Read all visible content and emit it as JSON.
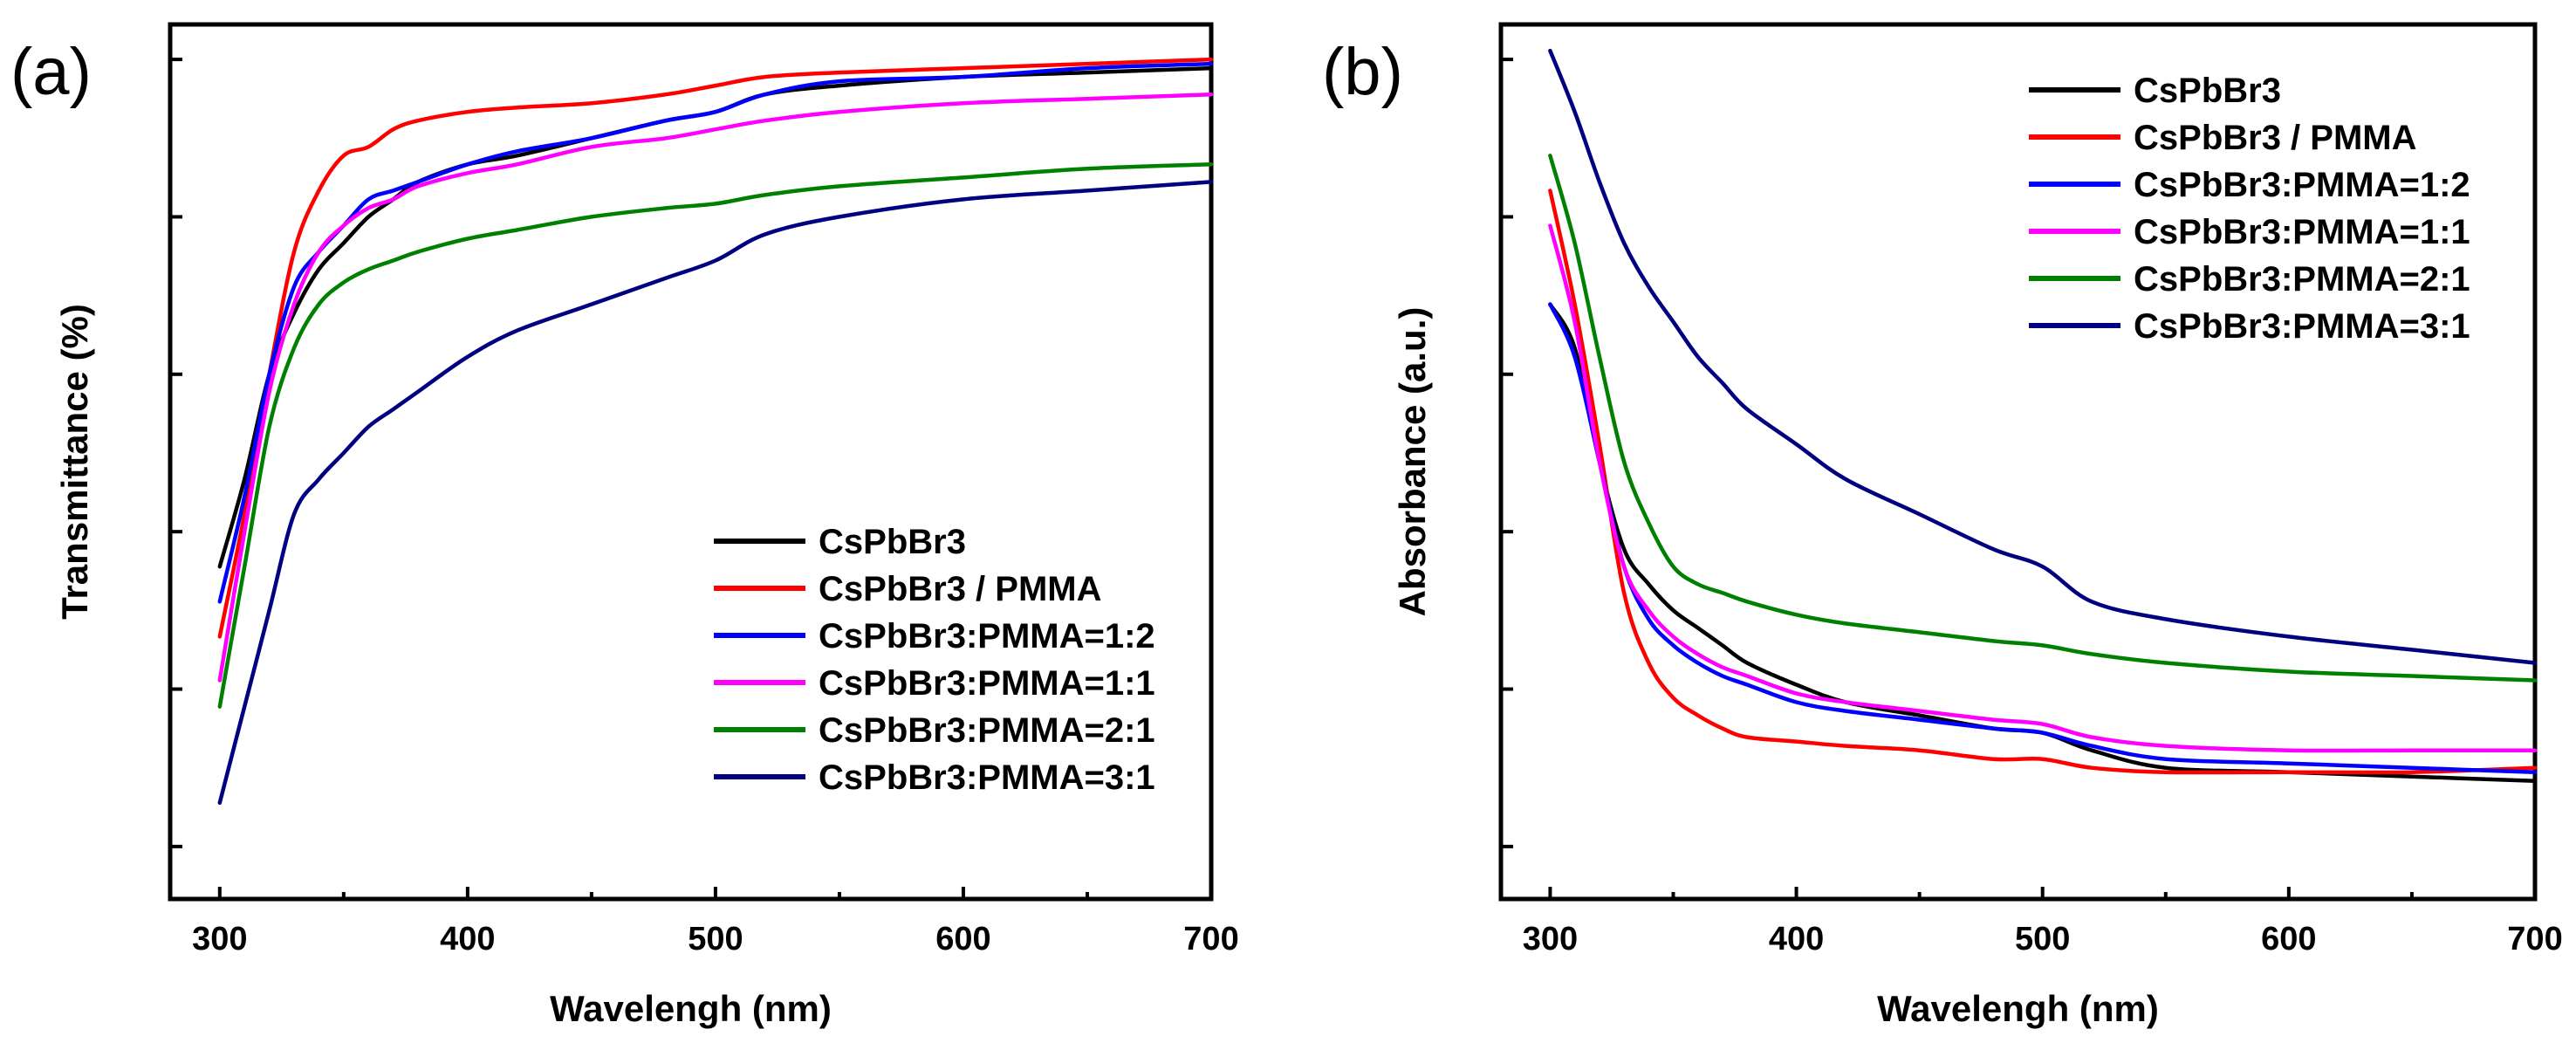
{
  "chart_data": [
    {
      "type": "line",
      "panel": "(a)",
      "title": "",
      "xlabel": "Wavelengh (nm)",
      "ylabel": "Transmittance (%)",
      "xlim": [
        280,
        700
      ],
      "ylim": [
        0,
        100
      ],
      "xticks": [
        300,
        400,
        500,
        600,
        700
      ],
      "x": [
        300,
        310,
        320,
        330,
        340,
        350,
        360,
        370,
        380,
        400,
        420,
        450,
        480,
        500,
        520,
        550,
        600,
        650,
        700
      ],
      "series": [
        {
          "name": "CsPbBr3",
          "color": "#000000",
          "values": [
            38,
            48,
            60,
            67,
            72,
            75,
            78,
            80,
            82,
            84,
            85,
            87,
            89,
            90,
            92,
            93,
            94,
            94.5,
            95
          ]
        },
        {
          "name": "CsPbBr3 / PMMA",
          "color": "#ff0000",
          "values": [
            30,
            44,
            60,
            74,
            81,
            85,
            86,
            88,
            89,
            90,
            90.5,
            91,
            92,
            93,
            94,
            94.5,
            95,
            95.5,
            96
          ]
        },
        {
          "name": "CsPbBr3:PMMA=1:2",
          "color": "#0000ff",
          "values": [
            34,
            46,
            60,
            70,
            74,
            77,
            80,
            81,
            82,
            84,
            85.5,
            87,
            89,
            90,
            92,
            93.5,
            94,
            95,
            95.5
          ]
        },
        {
          "name": "CsPbBr3:PMMA=1:1",
          "color": "#ff00ff",
          "values": [
            25,
            42,
            58,
            68,
            74,
            77,
            79,
            80,
            81.5,
            83,
            84,
            86,
            87,
            88,
            89,
            90,
            91,
            91.5,
            92
          ]
        },
        {
          "name": "CsPbBr3:PMMA=2:1",
          "color": "#008000",
          "values": [
            22,
            38,
            54,
            63,
            68,
            70.5,
            72,
            73,
            74,
            75.5,
            76.5,
            78,
            79,
            79.5,
            80.5,
            81.5,
            82.5,
            83.5,
            84
          ]
        },
        {
          "name": "CsPbBr3:PMMA=3:1",
          "color": "#000080",
          "values": [
            11,
            22,
            33,
            44,
            48,
            51,
            54,
            56,
            58,
            62,
            65,
            68,
            71,
            73,
            76,
            78,
            80,
            81,
            82
          ]
        }
      ]
    },
    {
      "type": "line",
      "panel": "(b)",
      "title": "",
      "xlabel": "Wavelengh (nm)",
      "ylabel": "Absorbance (a.u.)",
      "xlim": [
        280,
        700
      ],
      "ylim": [
        0,
        100
      ],
      "xticks": [
        300,
        400,
        500,
        600,
        700
      ],
      "x": [
        300,
        310,
        320,
        330,
        340,
        350,
        360,
        370,
        380,
        400,
        420,
        450,
        480,
        500,
        520,
        550,
        600,
        650,
        700
      ],
      "series": [
        {
          "name": "CsPbBr3",
          "color": "#000000",
          "values": [
            68,
            63,
            50,
            40,
            36,
            33,
            31,
            29,
            27,
            24.5,
            22.5,
            21,
            19.5,
            19,
            17,
            15,
            14.5,
            14,
            13.5
          ]
        },
        {
          "name": "CsPbBr3 / PMMA",
          "color": "#ff0000",
          "values": [
            81,
            68,
            52,
            35,
            27,
            23,
            21,
            19.5,
            18.5,
            18,
            17.5,
            17,
            16,
            16,
            15,
            14.5,
            14.5,
            14.5,
            15
          ]
        },
        {
          "name": "CsPbBr3:PMMA=1:2",
          "color": "#0000ff",
          "values": [
            68,
            62,
            50,
            38,
            32,
            29,
            27,
            25.5,
            24.5,
            22.5,
            21.5,
            20.5,
            19.5,
            19,
            17.5,
            16,
            15.5,
            15,
            14.5
          ]
        },
        {
          "name": "CsPbBr3:PMMA=1:1",
          "color": "#ff00ff",
          "values": [
            77,
            66,
            50,
            38,
            33,
            30,
            28,
            26.5,
            25.5,
            23.5,
            22.5,
            21.5,
            20.5,
            20,
            18.5,
            17.5,
            17,
            17,
            17
          ]
        },
        {
          "name": "CsPbBr3:PMMA=2:1",
          "color": "#008000",
          "values": [
            85,
            75,
            62,
            50,
            43,
            38,
            36,
            35,
            34,
            32.5,
            31.5,
            30.5,
            29.5,
            29,
            28,
            27,
            26,
            25.5,
            25
          ]
        },
        {
          "name": "CsPbBr3:PMMA=3:1",
          "color": "#000080",
          "values": [
            97,
            90,
            82,
            75,
            70,
            66,
            62,
            59,
            56,
            52,
            48,
            44,
            40,
            38,
            34,
            32,
            30,
            28.5,
            27
          ]
        }
      ]
    }
  ]
}
